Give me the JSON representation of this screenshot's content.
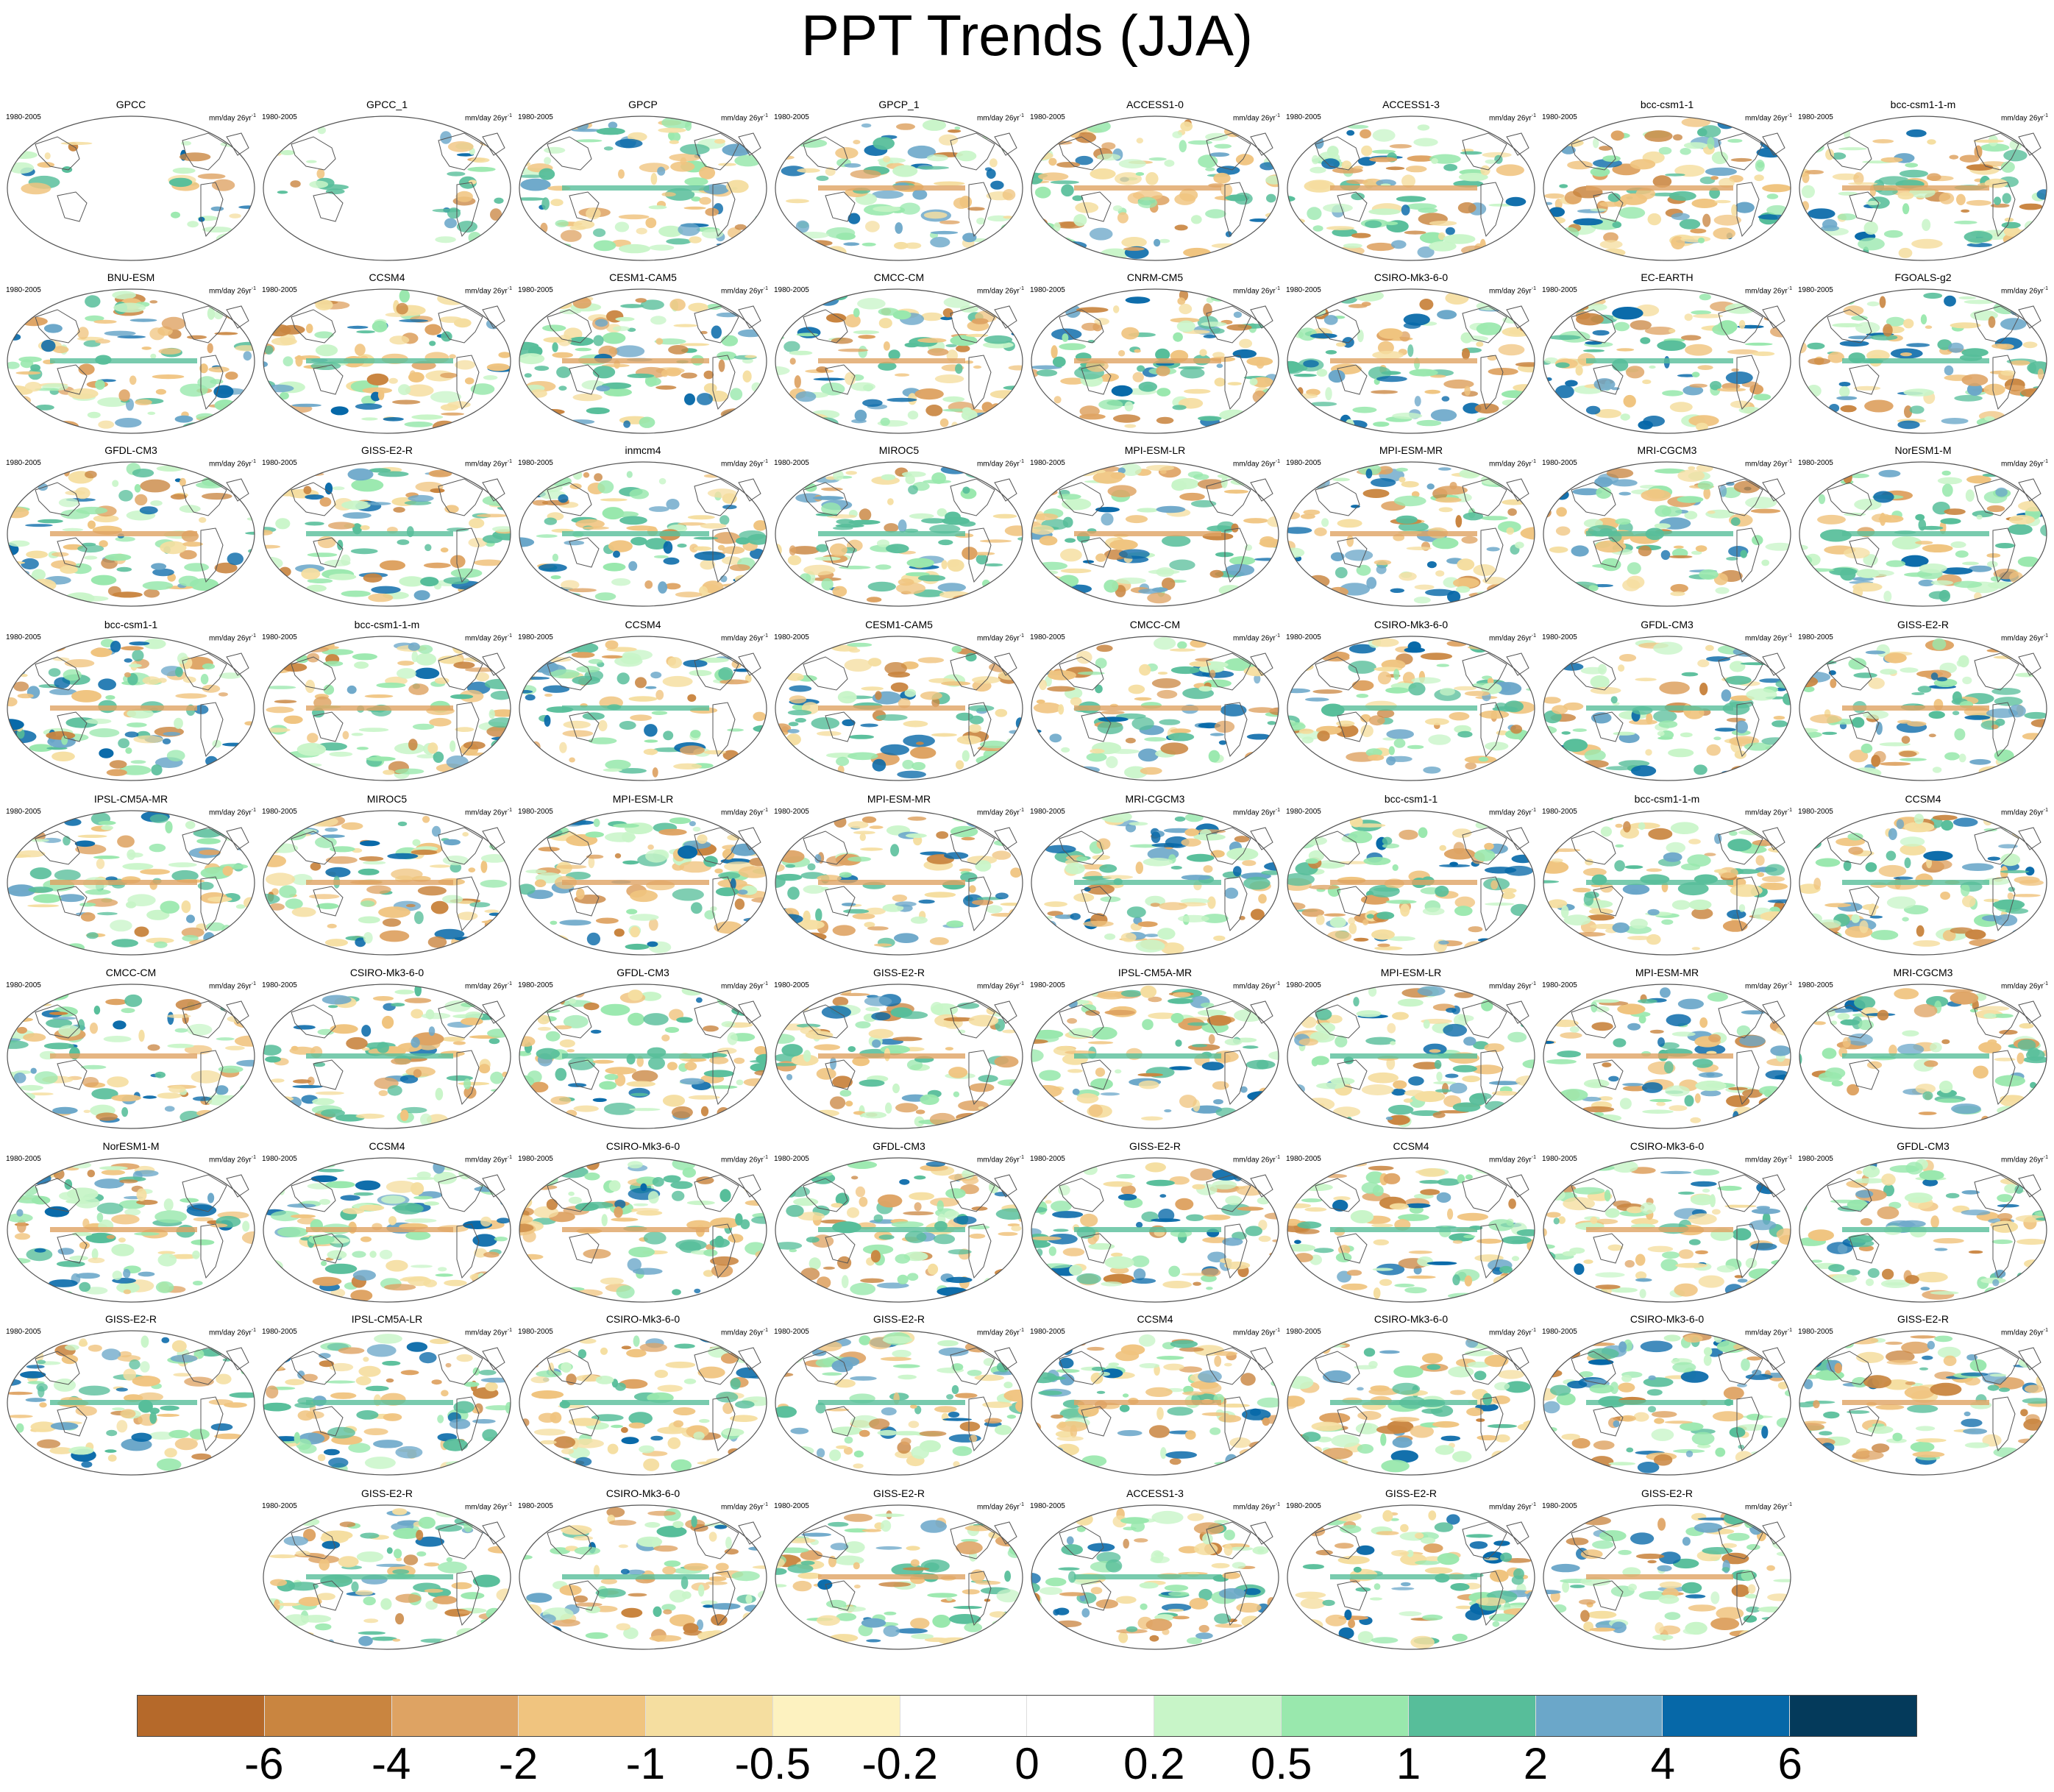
{
  "title": "PPT Trends (JJA)",
  "panel_period": "1980-2005",
  "panel_units": "mm/day 26yr",
  "panel_units_exp": "-1",
  "panels": [
    "GPCC",
    "GPCC_1",
    "GPCP",
    "GPCP_1",
    "ACCESS1-0",
    "ACCESS1-3",
    "bcc-csm1-1",
    "bcc-csm1-1-m",
    "BNU-ESM",
    "CCSM4",
    "CESM1-CAM5",
    "CMCC-CM",
    "CNRM-CM5",
    "CSIRO-Mk3-6-0",
    "EC-EARTH",
    "FGOALS-g2",
    "GFDL-CM3",
    "GISS-E2-R",
    "inmcm4",
    "MIROC5",
    "MPI-ESM-LR",
    "MPI-ESM-MR",
    "MRI-CGCM3",
    "NorESM1-M",
    "bcc-csm1-1",
    "bcc-csm1-1-m",
    "CCSM4",
    "CESM1-CAM5",
    "CMCC-CM",
    "CSIRO-Mk3-6-0",
    "GFDL-CM3",
    "GISS-E2-R",
    "IPSL-CM5A-MR",
    "MIROC5",
    "MPI-ESM-LR",
    "MPI-ESM-MR",
    "MRI-CGCM3",
    "bcc-csm1-1",
    "bcc-csm1-1-m",
    "CCSM4",
    "CMCC-CM",
    "CSIRO-Mk3-6-0",
    "GFDL-CM3",
    "GISS-E2-R",
    "IPSL-CM5A-MR",
    "MPI-ESM-LR",
    "MPI-ESM-MR",
    "MRI-CGCM3",
    "NorESM1-M",
    "CCSM4",
    "CSIRO-Mk3-6-0",
    "GFDL-CM3",
    "GISS-E2-R",
    "CCSM4",
    "CSIRO-Mk3-6-0",
    "GFDL-CM3",
    "GISS-E2-R",
    "IPSL-CM5A-LR",
    "CSIRO-Mk3-6-0",
    "GISS-E2-R",
    "CCSM4",
    "CSIRO-Mk3-6-0",
    "CSIRO-Mk3-6-0",
    "GISS-E2-R",
    "GISS-E2-R",
    "CSIRO-Mk3-6-0",
    "GISS-E2-R",
    "ACCESS1-3",
    "GISS-E2-R",
    "GISS-E2-R"
  ],
  "colorbar": {
    "colors": [
      "#b5692a",
      "#c98540",
      "#dea363",
      "#f0c47f",
      "#f5dea0",
      "#fdf2c0",
      "#ffffff",
      "#ffffff",
      "#c8f5c8",
      "#99e8ad",
      "#57be9a",
      "#6ba7c9",
      "#0668a8",
      "#043a5b"
    ],
    "labels": [
      "-6",
      "-4",
      "-2",
      "-1",
      "-0.5",
      "-0.2",
      "0",
      "0.2",
      "0.5",
      "1",
      "2",
      "4",
      "6"
    ]
  }
}
